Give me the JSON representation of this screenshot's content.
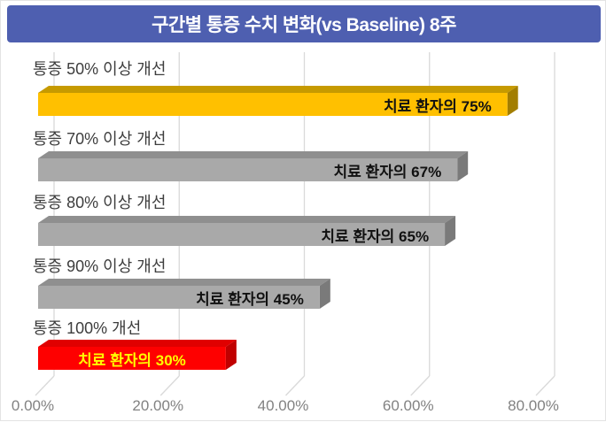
{
  "header": {
    "title": "구간별 통증 수치 변화(vs Baseline) 8주"
  },
  "colors": {
    "title_bg": "#4e5fb0",
    "title_text": "#ffffff",
    "background": "#ffffff",
    "gridline": "#d9d9d9",
    "axis_label": "#828282",
    "category_label": "#3d3d3d"
  },
  "chart_data": {
    "type": "bar",
    "orientation": "horizontal",
    "style": "3d",
    "title": "구간별 통증 수치 변화(vs Baseline) 8주",
    "grid": true,
    "legend": false,
    "xlim": [
      0,
      88
    ],
    "categories": [
      "통증 50% 이상 개선",
      "통증 70% 이상 개선",
      "통증 80% 이상 개선",
      "통증 90% 이상 개선",
      "통증 100% 개선"
    ],
    "values": [
      75,
      67,
      65,
      45,
      30
    ],
    "bars": [
      {
        "category": "통증 50% 이상 개선",
        "value": 75,
        "label": "치료 환자의 75%",
        "color": "#ffc000",
        "color_top": "#c69a00",
        "color_side": "#a37e00",
        "label_color": "#111111",
        "label_align": "right"
      },
      {
        "category": "통증 70% 이상 개선",
        "value": 67,
        "label": "치료 환자의 67%",
        "color": "#a9a9a9",
        "color_top": "#8f8f8f",
        "color_side": "#7a7a7a",
        "label_color": "#111111",
        "label_align": "right"
      },
      {
        "category": "통증 80% 이상 개선",
        "value": 65,
        "label": "치료 환자의 65%",
        "color": "#a9a9a9",
        "color_top": "#8f8f8f",
        "color_side": "#7a7a7a",
        "label_color": "#111111",
        "label_align": "right"
      },
      {
        "category": "통증 90% 이상 개선",
        "value": 45,
        "label": "치료 환자의 45%",
        "color": "#a9a9a9",
        "color_top": "#8f8f8f",
        "color_side": "#7a7a7a",
        "label_color": "#111111",
        "label_align": "right"
      },
      {
        "category": "통증 100% 개선",
        "value": 30,
        "label": "치료 환자의 30%",
        "color": "#fe0000",
        "color_top": "#e00000",
        "color_side": "#c00000",
        "label_color": "#ffff00",
        "label_align": "center"
      }
    ],
    "x_axis": {
      "ticks": [
        {
          "label": "0.00%",
          "value": 0
        },
        {
          "label": "20.00%",
          "value": 20
        },
        {
          "label": "40.00%",
          "value": 40
        },
        {
          "label": "60.00%",
          "value": 60
        },
        {
          "label": "80.00%",
          "value": 80
        }
      ]
    }
  }
}
